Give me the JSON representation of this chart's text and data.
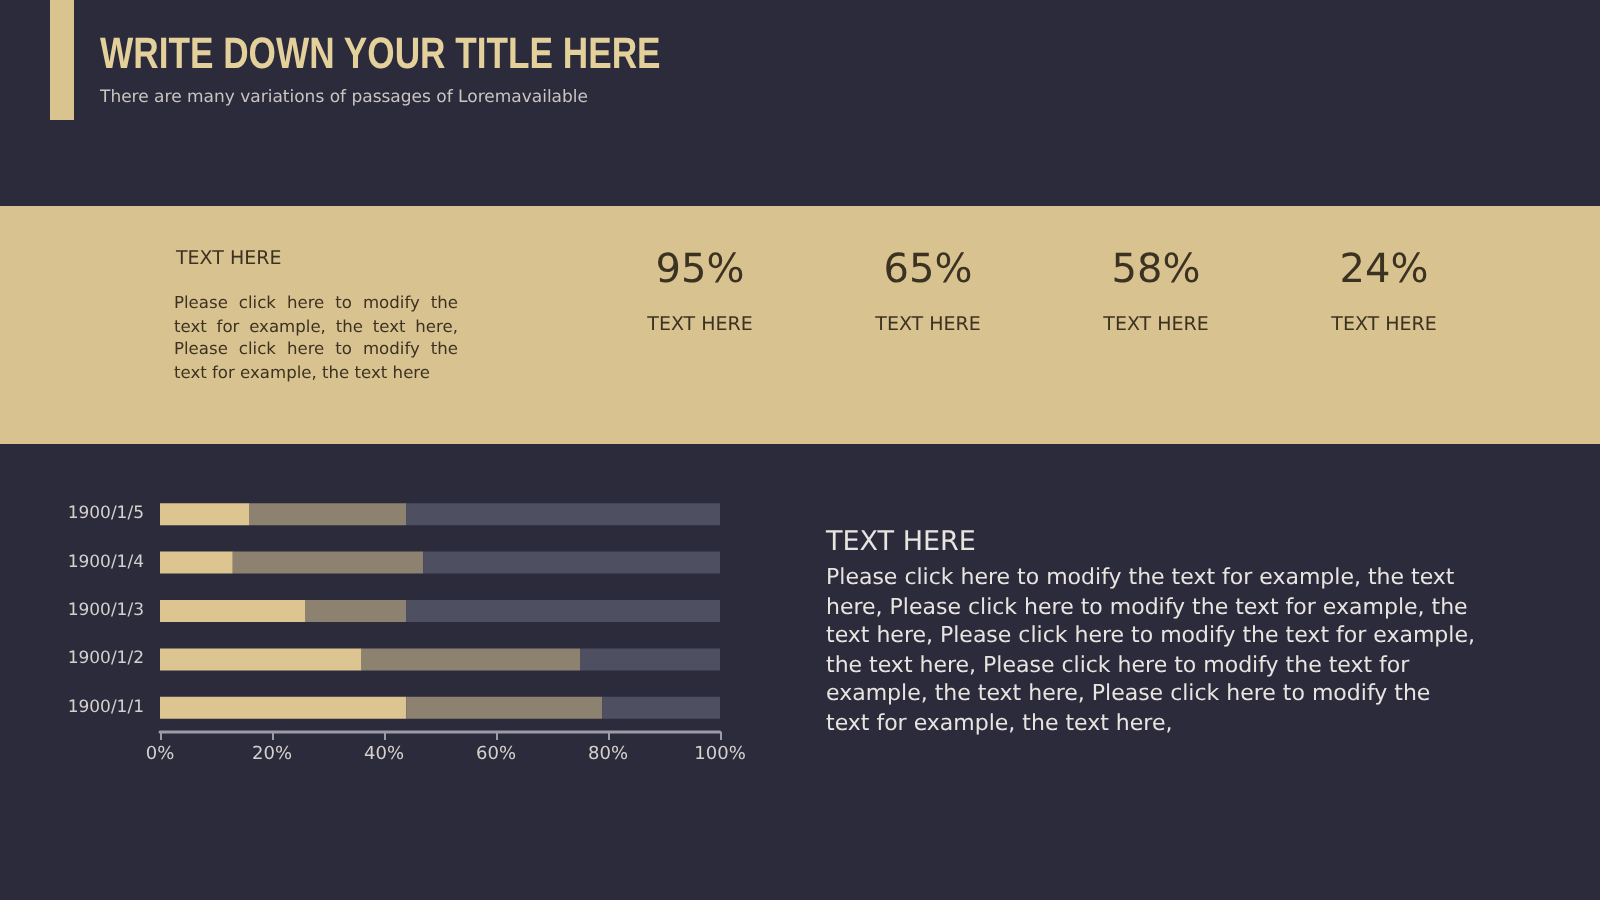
{
  "chart_data": [
    {
      "type": "other",
      "title": "WRITE DOWN YOUR TITLE HERE",
      "subtitle": "There are many variations of passages of Loremavailable",
      "annotations": [
        "TEXT HERE",
        "Please click here to modify the text for example, the text here, Please click here to modify the text for example, the text here",
        "95%",
        "TEXT HERE",
        "65%",
        "TEXT HERE",
        "58%",
        "TEXT HERE",
        "24%",
        "TEXT HERE"
      ]
    },
    {
      "type": "bar",
      "orientation": "horizontal",
      "stacked": true,
      "categories": [
        "1900/1/5",
        "1900/1/4",
        "1900/1/3",
        "1900/1/2",
        "1900/1/1"
      ],
      "series": [
        {
          "color": "#dcc590",
          "values": [
            16,
            13,
            26,
            36,
            44
          ]
        },
        {
          "color": "#8d8170",
          "values": [
            28,
            34,
            18,
            39,
            35
          ]
        },
        {
          "color": "#4e4f61",
          "values": [
            56,
            53,
            56,
            25,
            21
          ]
        }
      ],
      "xlim": [
        0,
        100
      ],
      "xticks": [
        {
          "value": 0,
          "label": "0%"
        },
        {
          "value": 20,
          "label": "20%"
        },
        {
          "value": 40,
          "label": "40%"
        },
        {
          "value": 60,
          "label": "60%"
        },
        {
          "value": 80,
          "label": "80%"
        },
        {
          "value": 100,
          "label": "100%"
        }
      ],
      "annotations": [
        "TEXT HERE",
        "Please click here to modify the text for example, the text here, Please click here to modify the text for example, the text here, Please click here to modify the text for example, the text here, Please click here to modify the text for example, the text here, Please click here to modify the text for example, the text here,"
      ]
    }
  ]
}
